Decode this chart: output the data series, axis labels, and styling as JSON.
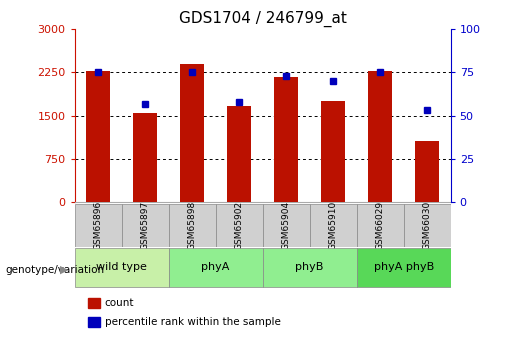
{
  "title": "GDS1704 / 246799_at",
  "samples": [
    "GSM65896",
    "GSM65897",
    "GSM65898",
    "GSM65902",
    "GSM65904",
    "GSM65910",
    "GSM66029",
    "GSM66030"
  ],
  "counts": [
    2270,
    1540,
    2400,
    1660,
    2170,
    1760,
    2280,
    1050
  ],
  "percentile_ranks": [
    75,
    57,
    75,
    58,
    73,
    70,
    75,
    53
  ],
  "bar_color": "#bb1100",
  "dot_color": "#0000bb",
  "left_axis_color": "#cc1100",
  "right_axis_color": "#0000cc",
  "ylim_left": [
    0,
    3000
  ],
  "ylim_right": [
    0,
    100
  ],
  "yticks_left": [
    0,
    750,
    1500,
    2250,
    3000
  ],
  "yticks_right": [
    0,
    25,
    50,
    75,
    100
  ],
  "bar_width": 0.5,
  "background_color": "#ffffff",
  "grid_color": "#000000",
  "sample_box_color": "#d0d0d0",
  "group_boundaries": [
    {
      "start": 0,
      "end": 1,
      "label": "wild type",
      "color": "#c8f0a8"
    },
    {
      "start": 2,
      "end": 3,
      "label": "phyA",
      "color": "#90ee90"
    },
    {
      "start": 4,
      "end": 5,
      "label": "phyB",
      "color": "#90ee90"
    },
    {
      "start": 6,
      "end": 7,
      "label": "phyA phyB",
      "color": "#58d858"
    }
  ],
  "genotype_label": "genotype/variation",
  "legend_items": [
    {
      "label": "count",
      "color": "#bb1100"
    },
    {
      "label": "percentile rank within the sample",
      "color": "#0000bb"
    }
  ]
}
